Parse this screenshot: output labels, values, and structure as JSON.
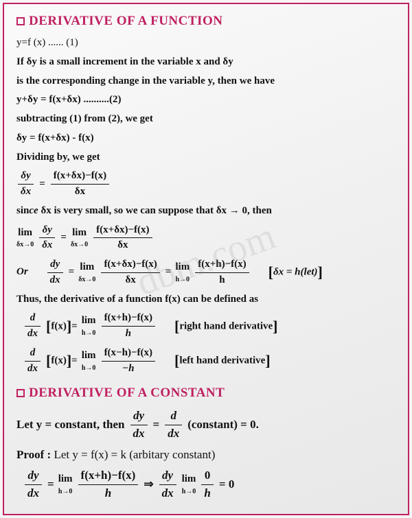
{
  "watermark": "dbm.com",
  "h1": "DERIVATIVE OF A FUNCTION",
  "l1": "y=f (x)                                  ......   (1)",
  "l2": "If δy is a small increment in the variable x and δy",
  "l3": "is the corresponding change in the variable y, then we have",
  "l4": "y+δy = f(x+δx)                                      ..........(2)",
  "l5": "subtracting (1) from (2), we get",
  "l6": "δy = f(x+δx) - f(x)",
  "l7": "Dividing by, we get",
  "f1n": "δy",
  "f1d": "δx",
  "f2n": "f(x+δx)−f(x)",
  "f2d": "δx",
  "l8a": "sin",
  "l8b": "ce",
  "l8c": " δx is very small, so we can suppose that δx → 0, then",
  "lim1": "lim",
  "lim1s": "δx→0",
  "or": "Or",
  "dydx_n": "dy",
  "dydx_d": "dx",
  "f3n": "f(x+δx)−f(x)",
  "f3d": "δx",
  "lim2s": "h→0",
  "f4n": "f(x+h)−f(x)",
  "f4d": "h",
  "note1": "δx = h(let)",
  "l9": "Thus, the derivative of a function f(x) can be defined as",
  "ddx_n": "d",
  "ddx_d": "dx",
  "fx": "f(x)",
  "rhd": "right hand derivative",
  "f5n": "f(x−h)−f(x)",
  "f5d": "−h",
  "lhd": "left hand derivative",
  "h2": "DERIVATIVE OF A CONSTANT",
  "c1a": "Let y = constant, then ",
  "c1b": "(constant) = 0.",
  "proof": "Proof :",
  "c2": " Let y = f(x) = k (arbitary constant)",
  "f6n": "0",
  "f6d": "h",
  "eq0": "= 0",
  "arrow": "⇒"
}
